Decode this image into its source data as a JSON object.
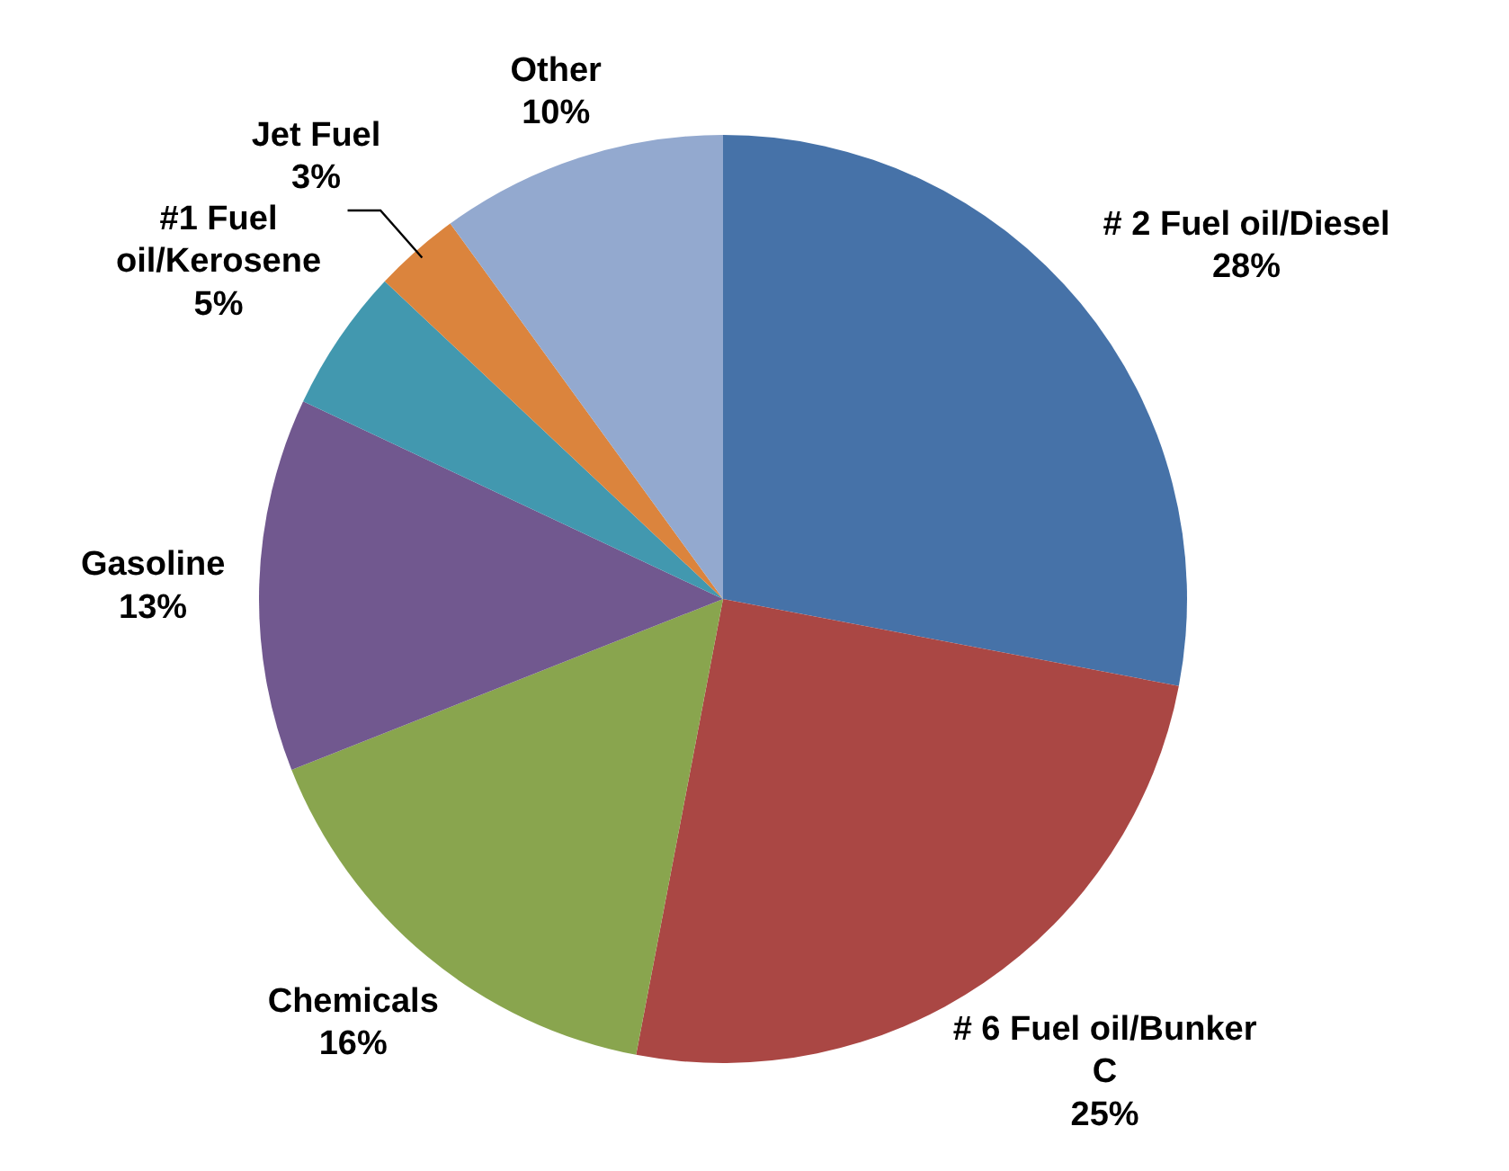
{
  "chart_data": {
    "type": "pie",
    "categories": [
      "# 2 Fuel oil/Diesel",
      "# 6 Fuel oil/Bunker C",
      "Chemicals",
      "Gasoline",
      "#1 Fuel oil/Kerosene",
      "Jet Fuel",
      "Other"
    ],
    "values": [
      28,
      25,
      16,
      13,
      5,
      3,
      10
    ],
    "colors": [
      "#4672a8",
      "#aa4744",
      "#89a54e",
      "#71588f",
      "#4298af",
      "#db843d",
      "#93a9cf"
    ],
    "value_labels": [
      "28%",
      "25%",
      "16%",
      "13%",
      "5%",
      "3%",
      "10%"
    ]
  }
}
